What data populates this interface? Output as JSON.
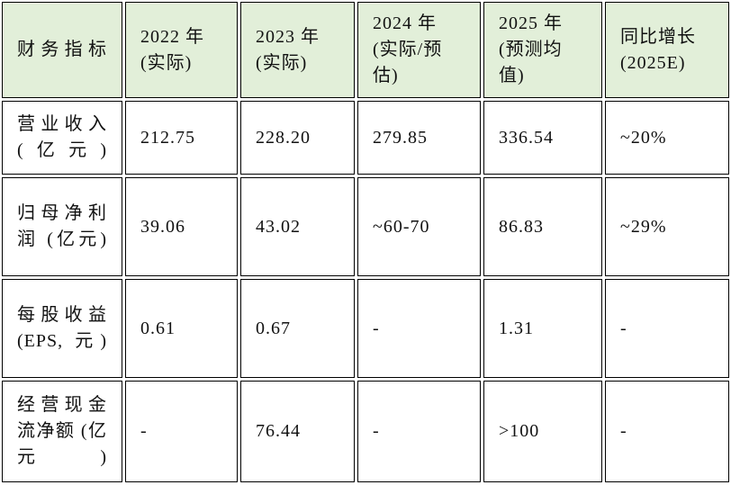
{
  "table": {
    "header": [
      "财务指标",
      "2022 年 (实际)",
      "2023 年 (实际)",
      "2024 年 (实际/预估)",
      "2025 年 (预测均值)",
      "同比增长 (2025E)"
    ],
    "rows": [
      [
        "营业收入 (亿元)",
        "212.75",
        "228.20",
        "279.85",
        "336.54",
        "~20%"
      ],
      [
        "归母净利润 (亿元)",
        "39.06",
        "43.02",
        "~60-70",
        "86.83",
        "~29%"
      ],
      [
        "每股收益 (EPS, 元)",
        "0.61",
        "0.67",
        "-",
        "1.31",
        "-"
      ],
      [
        "经营现金流净额 (亿元)",
        "-",
        "76.44",
        "-",
        ">100",
        "-"
      ]
    ]
  }
}
